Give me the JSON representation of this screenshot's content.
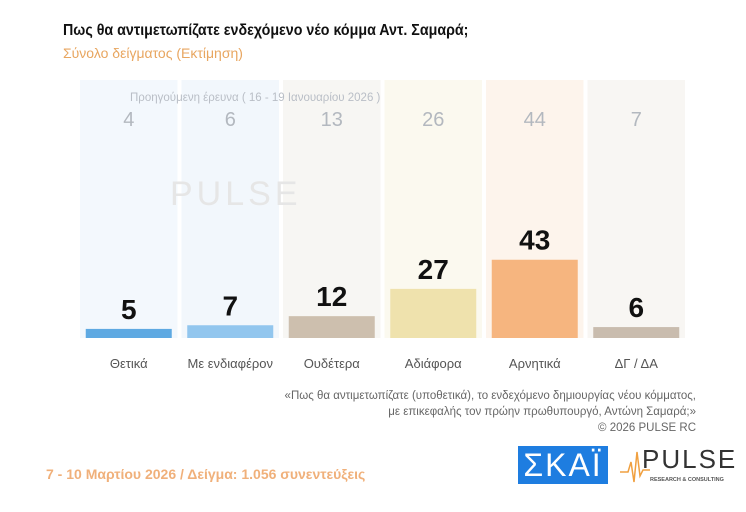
{
  "title": "Πως θα αντιμετωπίζατε ενδεχόμενο νέο κόμμα Αντ. Σαμαρά;",
  "subtitle": "Σύνολο δείγματος  (Εκτίμηση)",
  "note": {
    "line1": "«Πως θα αντιμετωπίζατε (υποθετικά), το ενδεχόμενο δημιουργίας νέου κόμματος,",
    "line2": "με επικεφαλής τον πρώην πρωθυπουργό, Αντώνη Σαμαρά;»",
    "line3": "©  2026  PULSE RC"
  },
  "footer": "7 - 10  Μαρτίου 2026  /  Δείγμα:  1.056 συνεντεύξεις",
  "logos": {
    "skai": "ΣΚΑΪ",
    "pulse": "PULSE",
    "pulse_sub": "RESEARCH & CONSULTING"
  },
  "chart_data": {
    "type": "bar",
    "title": "Πως θα αντιμετωπίζατε ενδεχόμενο νέο κόμμα Αντ. Σαμαρά;",
    "previous_label": "Προηγούμενη έρευνα ( 16 - 19 Ιανουαρίου 2026 )",
    "categories": [
      "Θετικά",
      "Με ενδιαφέρον",
      "Ουδέτερα",
      "Αδιάφορα",
      "Αρνητικά",
      "ΔΓ / ΔΑ"
    ],
    "values": [
      5,
      7,
      12,
      27,
      43,
      6
    ],
    "previous": [
      4,
      6,
      13,
      26,
      44,
      7
    ],
    "colors": [
      "#5ea9e2",
      "#92c6ee",
      "#cdbfae",
      "#efe2ad",
      "#f6b57f",
      "#c9bcae"
    ],
    "bg_colors": [
      "#f3f8fd",
      "#f2f7fc",
      "#f7f6f3",
      "#fbf9ef",
      "#fdf4ec",
      "#f8f6f3"
    ],
    "ylim": [
      0,
      50
    ]
  }
}
